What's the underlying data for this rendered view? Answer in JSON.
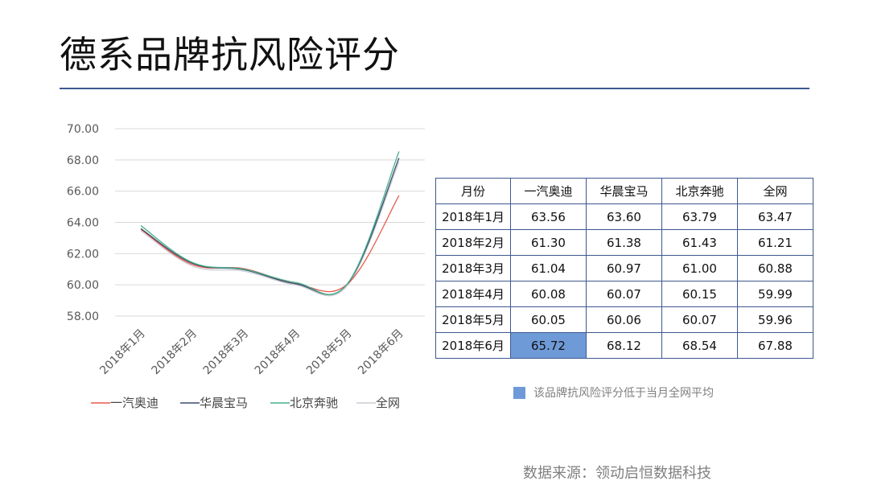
{
  "title": "德系品牌抗风险评分",
  "chart_data": {
    "type": "line",
    "categories": [
      "2018年1月",
      "2018年2月",
      "2018年3月",
      "2018年4月",
      "2018年5月",
      "2018年6月"
    ],
    "series": [
      {
        "name": "一汽奥迪",
        "values": [
          63.56,
          61.3,
          61.04,
          60.08,
          60.05,
          65.72
        ],
        "color": "#e8594c"
      },
      {
        "name": "华晨宝马",
        "values": [
          63.6,
          61.38,
          60.97,
          60.07,
          60.06,
          68.12
        ],
        "color": "#3b4a6b"
      },
      {
        "name": "北京奔驰",
        "values": [
          63.79,
          61.43,
          61.0,
          60.15,
          60.07,
          68.54
        ],
        "color": "#44b08c"
      },
      {
        "name": "全网",
        "values": [
          63.47,
          61.21,
          60.88,
          59.99,
          59.96,
          67.88
        ],
        "color": "#c9ccd3"
      }
    ],
    "y_ticks": [
      "70.00",
      "68.00",
      "66.00",
      "64.00",
      "62.00",
      "60.00",
      "58.00"
    ],
    "ylim": [
      58,
      70
    ],
    "grid": true,
    "legend_position": "bottom"
  },
  "table": {
    "headers": [
      "月份",
      "一汽奥迪",
      "华晨宝马",
      "北京奔驰",
      "全网"
    ],
    "rows": [
      {
        "month": "2018年1月",
        "values": [
          "63.56",
          "63.60",
          "63.79",
          "63.47"
        ],
        "highlight": [
          false,
          false,
          false,
          false
        ]
      },
      {
        "month": "2018年2月",
        "values": [
          "61.30",
          "61.38",
          "61.43",
          "61.21"
        ],
        "highlight": [
          false,
          false,
          false,
          false
        ]
      },
      {
        "month": "2018年3月",
        "values": [
          "61.04",
          "60.97",
          "61.00",
          "60.88"
        ],
        "highlight": [
          false,
          false,
          false,
          false
        ]
      },
      {
        "month": "2018年4月",
        "values": [
          "60.08",
          "60.07",
          "60.15",
          "59.99"
        ],
        "highlight": [
          false,
          false,
          false,
          false
        ]
      },
      {
        "month": "2018年5月",
        "values": [
          "60.05",
          "60.06",
          "60.07",
          "59.96"
        ],
        "highlight": [
          false,
          false,
          false,
          false
        ]
      },
      {
        "month": "2018年6月",
        "values": [
          "65.72",
          "68.12",
          "68.54",
          "67.88"
        ],
        "highlight": [
          true,
          false,
          false,
          false
        ]
      }
    ],
    "highlight_color": "#6f9ad8"
  },
  "note": "该品牌抗风险评分低于当月全网平均",
  "source": "数据来源：领动启恒数据科技"
}
